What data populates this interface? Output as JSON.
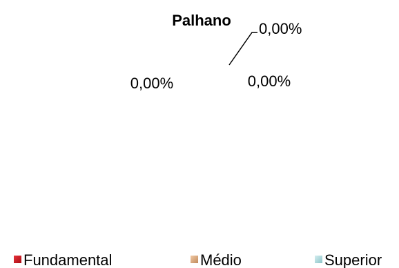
{
  "chart_data": {
    "type": "pie",
    "title": "Palhano",
    "categories": [
      "Fundamental",
      "Médio",
      "Superior"
    ],
    "values": [
      0,
      0,
      0
    ],
    "data_labels": [
      "0,00%",
      "0,00%",
      "0,00%"
    ],
    "colors": [
      "#c0141c",
      "#d8a57c",
      "#a8d6da"
    ],
    "legend_position": "bottom"
  }
}
